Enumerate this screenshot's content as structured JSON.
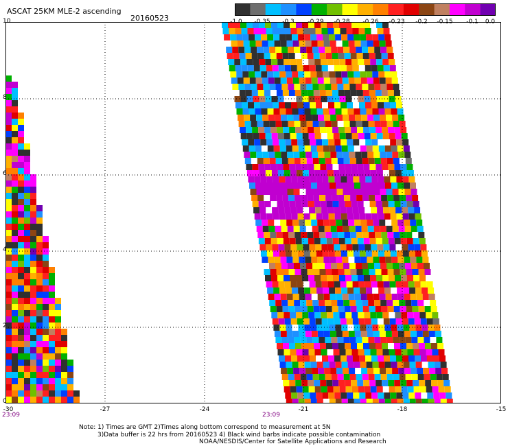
{
  "title": "ASCAT 25KM MLE-2 ascending",
  "date": "20160523",
  "map": {
    "lon_range": [
      -30,
      -15
    ],
    "lat_range": [
      0,
      10
    ],
    "x_ticks": [
      "-30",
      "-27",
      "-24",
      "-21",
      "-18",
      "-15"
    ],
    "y_ticks": [
      "0",
      "2",
      "4",
      "6",
      "8",
      "10"
    ],
    "grid": "dotted",
    "pass_times": [
      {
        "label": "23:09",
        "lon": -30
      },
      {
        "label": "23:09",
        "lon": -22.5
      }
    ]
  },
  "legend": {
    "colors": [
      "#303030",
      "#6e6e6e",
      "#00bfff",
      "#1e90ff",
      "#0040ff",
      "#00b000",
      "#70c000",
      "#ffff00",
      "#ffb000",
      "#ff8000",
      "#ff2020",
      "#e00000",
      "#8b4513",
      "#c08060",
      "#ff00ff",
      "#c000d0",
      "#7000b0"
    ],
    "labels": [
      "-1.0",
      "-0.35",
      "-0.3",
      "-0.29",
      "-0.28",
      "-0.26",
      "-0.23",
      "-0.2",
      "-0.15",
      "-0.1",
      "0.0"
    ]
  },
  "notes": {
    "line1": "Note: 1) Times are GMT 2)Times along bottom correspond to measurement at 5N",
    "line2": "3)Data buffer is 22 hrs from 20160523 4) Black wind barbs indicate possible contamination",
    "line3": "NOAA/NESDIS/Center for Satellite Applications and Research"
  }
}
